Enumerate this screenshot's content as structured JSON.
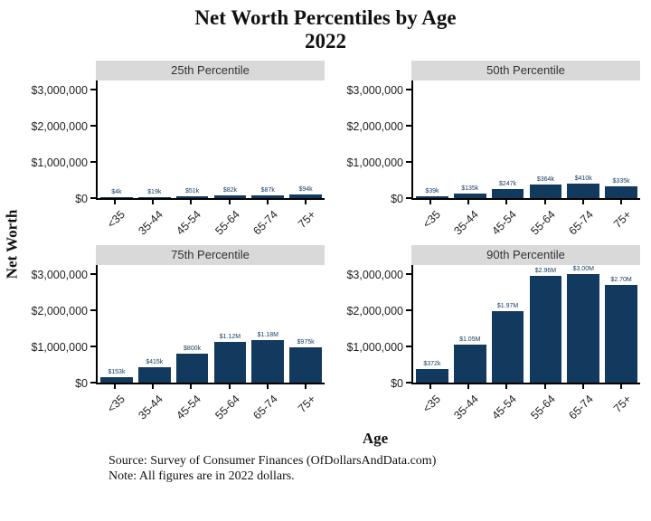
{
  "title": {
    "line1": "Net Worth Percentiles by Age",
    "line2": "2022"
  },
  "axes": {
    "y_label": "Net Worth",
    "x_label": "Age",
    "y_ticks": [
      "$0",
      "$1,000,000",
      "$2,000,000",
      "$3,000,000"
    ],
    "x_categories": [
      "<35",
      "35-44",
      "45-54",
      "55-64",
      "65-74",
      "75+"
    ]
  },
  "footer": {
    "source": "Source:  Survey of Consumer Finances (OfDollarsAndData.com)",
    "note": "Note: All figures are in 2022 dollars."
  },
  "colors": {
    "bar": "#12395e",
    "bar_label": "#12395e",
    "panel_header_bg": "#d9d9d9",
    "panel_header_text": "#333333"
  },
  "chart_data": {
    "type": "bar",
    "title": "Net Worth Percentiles by Age 2022",
    "xlabel": "Age",
    "ylabel": "Net Worth",
    "ylim": [
      0,
      3000000
    ],
    "grid": false,
    "legend": "none",
    "categories": [
      "<35",
      "35-44",
      "45-54",
      "55-64",
      "65-74",
      "75+"
    ],
    "facets": [
      {
        "label": "25th Percentile",
        "values": [
          4000,
          19000,
          51000,
          82000,
          87000,
          94000
        ],
        "value_labels": [
          "$4k",
          "$19k",
          "$51k",
          "$82k",
          "$87k",
          "$94k"
        ]
      },
      {
        "label": "50th Percentile",
        "values": [
          39000,
          135000,
          247000,
          364000,
          410000,
          335000
        ],
        "value_labels": [
          "$39k",
          "$135k",
          "$247k",
          "$364k",
          "$410k",
          "$335k"
        ]
      },
      {
        "label": "75th Percentile",
        "values": [
          153000,
          415000,
          800000,
          1120000,
          1180000,
          975000
        ],
        "value_labels": [
          "$153k",
          "$415k",
          "$800k",
          "$1.12M",
          "$1.18M",
          "$975k"
        ]
      },
      {
        "label": "90th Percentile",
        "values": [
          372000,
          1050000,
          1970000,
          2960000,
          3000000,
          2700000
        ],
        "value_labels": [
          "$372k",
          "$1.05M",
          "$1.97M",
          "$2.96M",
          "$3.00M",
          "$2.70M"
        ]
      }
    ]
  }
}
